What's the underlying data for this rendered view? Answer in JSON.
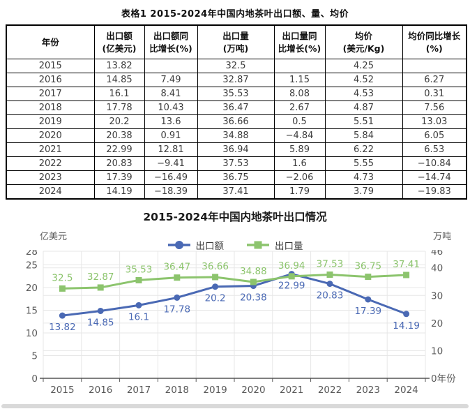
{
  "table": {
    "title": "表格1 2015-2024年中国内地茶叶出口额、量、均价",
    "headers": [
      [
        "年份"
      ],
      [
        "出口额",
        "(亿美元)"
      ],
      [
        "出口额同",
        "比增长(%)"
      ],
      [
        "出口量",
        "(万吨)"
      ],
      [
        "出口量同",
        "比增长(%)"
      ],
      [
        "均价",
        "(美元/Kg)"
      ],
      [
        "均价同比增长",
        "(%)"
      ]
    ],
    "rows": [
      [
        "2015",
        "13.82",
        "",
        "32.5",
        "",
        "4.25",
        ""
      ],
      [
        "2016",
        "14.85",
        "7.49",
        "32.87",
        "1.15",
        "4.52",
        "6.27"
      ],
      [
        "2017",
        "16.1",
        "8.41",
        "35.53",
        "8.08",
        "4.53",
        "0.31"
      ],
      [
        "2018",
        "17.78",
        "10.43",
        "36.47",
        "2.67",
        "4.87",
        "7.56"
      ],
      [
        "2019",
        "20.2",
        "13.6",
        "36.66",
        "0.5",
        "5.51",
        "13.03"
      ],
      [
        "2020",
        "20.38",
        "0.91",
        "34.88",
        "−4.84",
        "5.84",
        "6.05"
      ],
      [
        "2021",
        "22.99",
        "12.81",
        "36.94",
        "5.89",
        "6.22",
        "6.53"
      ],
      [
        "2022",
        "20.83",
        "−9.41",
        "37.53",
        "1.6",
        "5.55",
        "−10.84"
      ],
      [
        "2023",
        "17.39",
        "−16.49",
        "36.75",
        "−2.06",
        "4.73",
        "−14.74"
      ],
      [
        "2024",
        "14.19",
        "−18.39",
        "37.41",
        "1.79",
        "3.79",
        "−19.83"
      ]
    ]
  },
  "chart_data": {
    "type": "line",
    "title": "2015-2024年中国内地茶叶出口情况",
    "categories": [
      "2015",
      "2016",
      "2017",
      "2018",
      "2019",
      "2020",
      "2021",
      "2022",
      "2023",
      "2024"
    ],
    "series": [
      {
        "name": "出口额",
        "axis": "left",
        "marker": "circle",
        "color": "#4a69b4",
        "values": [
          13.82,
          14.85,
          16.1,
          17.78,
          20.2,
          20.38,
          22.99,
          20.83,
          17.39,
          14.19
        ]
      },
      {
        "name": "出口量",
        "axis": "right",
        "marker": "square",
        "color": "#8cc46d",
        "values": [
          32.5,
          32.87,
          35.53,
          36.47,
          36.66,
          34.88,
          36.94,
          37.53,
          36.75,
          37.41
        ]
      }
    ],
    "left_axis": {
      "unit": "亿美元",
      "ticks": [
        0,
        5,
        10,
        15,
        20,
        25,
        28
      ],
      "max": 28
    },
    "right_axis": {
      "unit": "万吨",
      "ticks": [
        0,
        10,
        20,
        30,
        40,
        46
      ],
      "max": 46
    },
    "x_axis_title": "年份",
    "grid": true,
    "legend_position": "top-center"
  },
  "colors": {
    "accent_blue": "#4a69b4",
    "accent_green": "#8cc46d",
    "axis_text": "#595959",
    "grid_line": "#e7e7e7",
    "axis_line": "#555555",
    "table_border": "#000000",
    "bottom_bar": "#d9d9d9"
  }
}
